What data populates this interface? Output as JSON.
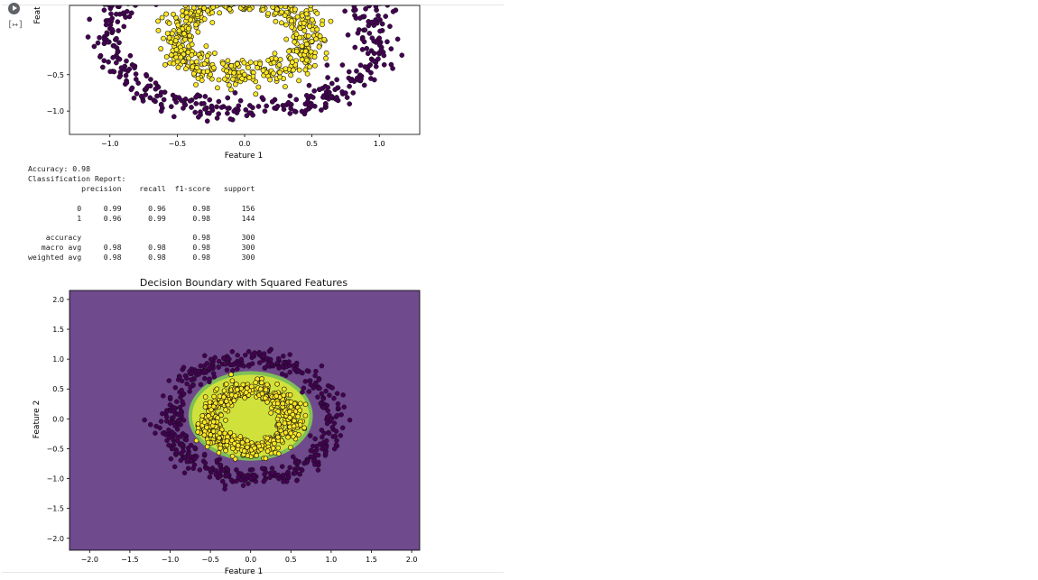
{
  "gutter": {
    "output_icon": "[↦]"
  },
  "plot1": {
    "ylabel_partial": "Feat",
    "xlabel": "Feature 1",
    "x_ticks": [
      "−1.0",
      "−0.5",
      "0.0",
      "0.5",
      "1.0"
    ],
    "y_ticks": [
      "−0.5",
      "−1.0"
    ]
  },
  "report": {
    "accuracy_line": "Accuracy: 0.98",
    "header_line": "Classification Report:",
    "columns": [
      "precision",
      "recall",
      "f1-score",
      "support"
    ],
    "rows": [
      {
        "label": "0",
        "precision": "0.99",
        "recall": "0.96",
        "f1": "0.98",
        "support": "156"
      },
      {
        "label": "1",
        "precision": "0.96",
        "recall": "0.99",
        "f1": "0.98",
        "support": "144"
      }
    ],
    "summary": [
      {
        "label": "accuracy",
        "precision": "",
        "recall": "",
        "f1": "0.98",
        "support": "300"
      },
      {
        "label": "macro avg",
        "precision": "0.98",
        "recall": "0.98",
        "f1": "0.98",
        "support": "300"
      },
      {
        "label": "weighted avg",
        "precision": "0.98",
        "recall": "0.98",
        "f1": "0.98",
        "support": "300"
      }
    ]
  },
  "plot2": {
    "title": "Decision Boundary with Squared Features",
    "xlabel": "Feature 1",
    "ylabel": "Feature 2",
    "x_ticks": [
      "−2.0",
      "−1.5",
      "−1.0",
      "−0.5",
      "0.0",
      "0.5",
      "1.0",
      "1.5",
      "2.0"
    ],
    "y_ticks": [
      "2.0",
      "1.5",
      "1.0",
      "0.5",
      "0.0",
      "−0.5",
      "−1.0",
      "−1.5",
      "−2.0"
    ]
  },
  "colors": {
    "class0": "#440154",
    "class1": "#fde725",
    "region0": "#6f4a8c",
    "region1": "#d0e13b",
    "region_edge": "#7fbf58"
  },
  "chart_data": [
    {
      "type": "scatter",
      "title": "",
      "xlabel": "Feature 1",
      "ylabel": "Feat",
      "xlim": [
        -1.3,
        1.3
      ],
      "ylim": [
        -1.32,
        0.45
      ],
      "series": [
        {
          "class": "0",
          "description_points": "outer ring radius ~1.0 (cropped)",
          "radius_mean": 1.0,
          "noise": 0.08
        },
        {
          "class": "1",
          "description_points": "inner ring radius ~0.5 (cropped)",
          "radius_mean": 0.5,
          "noise": 0.08
        }
      ]
    },
    {
      "type": "scatter",
      "title": "Decision Boundary with Squared Features",
      "xlabel": "Feature 1",
      "ylabel": "Feature 2",
      "xlim": [
        -2.25,
        2.1
      ],
      "ylim": [
        -2.2,
        2.15
      ],
      "grid": false,
      "boundary": {
        "type": "ellipse",
        "center": [
          0.0,
          0.05
        ],
        "rx": 0.75,
        "ry": 0.72
      },
      "series": [
        {
          "class": "0",
          "radius_mean": 1.0,
          "noise": 0.08
        },
        {
          "class": "1",
          "radius_mean": 0.5,
          "noise": 0.08
        }
      ]
    }
  ]
}
